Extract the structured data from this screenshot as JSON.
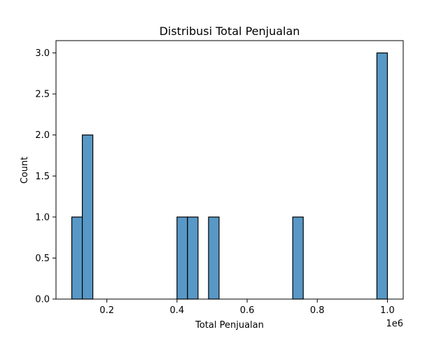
{
  "chart_data": {
    "type": "bar",
    "chart_kind": "histogram",
    "title": "Distribusi Total Penjualan",
    "xlabel": "Total Penjualan",
    "ylabel": "Count",
    "x_offset_label": "1e6",
    "x_scale_factor": 1000000,
    "xlim": [
      55000,
      1045000
    ],
    "ylim": [
      0,
      3.15
    ],
    "x_ticks": [
      200000,
      400000,
      600000,
      800000,
      1000000
    ],
    "x_tick_labels": [
      "0.2",
      "0.4",
      "0.6",
      "0.8",
      "1.0"
    ],
    "y_ticks": [
      0,
      0.5,
      1,
      1.5,
      2,
      2.5,
      3
    ],
    "y_tick_labels": [
      "0.0",
      "0.5",
      "1.0",
      "1.5",
      "2.0",
      "2.5",
      "3.0"
    ],
    "bin_width": 30000,
    "bins": [
      {
        "start": 100000,
        "end": 130000,
        "count": 1
      },
      {
        "start": 130000,
        "end": 160000,
        "count": 2
      },
      {
        "start": 400000,
        "end": 430000,
        "count": 1
      },
      {
        "start": 430000,
        "end": 460000,
        "count": 1
      },
      {
        "start": 490000,
        "end": 520000,
        "count": 1
      },
      {
        "start": 730000,
        "end": 760000,
        "count": 1
      },
      {
        "start": 970000,
        "end": 1000000,
        "count": 3
      }
    ],
    "bar_color": "#5898c6",
    "edge_color": "#000000",
    "grid": false,
    "legend": "none"
  }
}
